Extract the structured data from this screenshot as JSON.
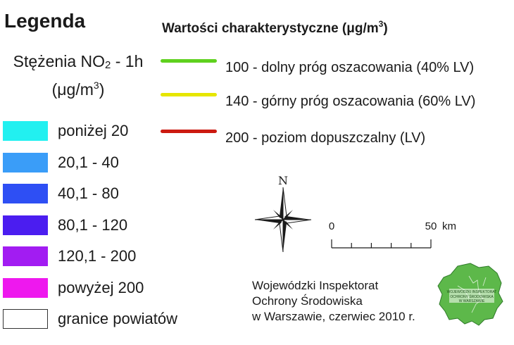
{
  "legend": {
    "title": "Legenda",
    "concentration_title_prefix": "Stężenia NO",
    "concentration_title_sub": "2",
    "concentration_title_suffix": " - 1h",
    "unit_prefix": "(μg/m",
    "unit_sup": "3",
    "unit_suffix": ")",
    "classes": [
      {
        "label": "poniżej 20",
        "color": "#22f0f0"
      },
      {
        "label": "20,1 - 40",
        "color": "#3a9df8"
      },
      {
        "label": "40,1 - 80",
        "color": "#2e4ff4"
      },
      {
        "label": "80,1 - 120",
        "color": "#4b1df0"
      },
      {
        "label": "120,1 - 200",
        "color": "#a21cf2"
      },
      {
        "label": "powyżej 200",
        "color": "#ee18ee"
      },
      {
        "label": "granice powiatów",
        "color": "#ffffff"
      }
    ]
  },
  "characteristic": {
    "title_prefix": "Wartości charakterystyczne (μg/m",
    "title_sup": "3",
    "title_suffix": ")",
    "thresholds": [
      {
        "label": "100 - dolny próg oszacowania (40% LV)",
        "color": "#5fd11e"
      },
      {
        "label": "140 - górny próg oszacowania (60% LV)",
        "color": "#e6e600"
      },
      {
        "label": "200 - poziom dopuszczalny (LV)",
        "color": "#cc1a10"
      }
    ]
  },
  "compass": {
    "north_label": "N",
    "icon": "compass-rose-icon"
  },
  "scale": {
    "start_label": "0",
    "end_label": "50",
    "unit": "km"
  },
  "credits": {
    "lines": [
      "Wojewódzki Inspektorat",
      "Ochrony Środowiska",
      "w Warszawie, czerwiec 2010 r."
    ]
  },
  "logo": {
    "icon": "wios-logo-icon",
    "text_lines": [
      "WOJEWÓDZKI INSPEKTORAT",
      "OCHRONY ŚRODOWISKA",
      "W WARSZAWIE"
    ],
    "color": "#5db84a"
  }
}
